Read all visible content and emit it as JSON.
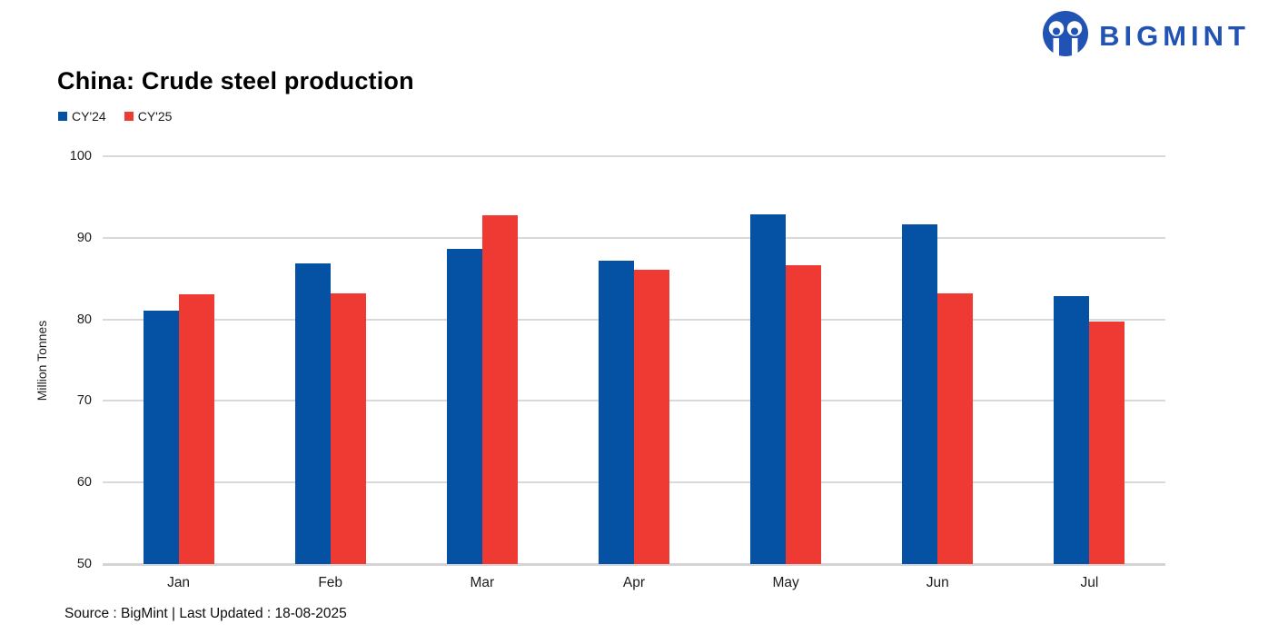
{
  "brand": {
    "name": "BIGMINT",
    "color": "#2153b4"
  },
  "title": "China: Crude steel production",
  "footer": {
    "source_text": "Source : BigMint | Last Updated : 18-08-2025"
  },
  "chart_data": {
    "type": "bar",
    "title": "China: Crude steel production",
    "categories": [
      "Jan",
      "Feb",
      "Mar",
      "Apr",
      "May",
      "Jun",
      "Jul"
    ],
    "series": [
      {
        "name": "CY'24",
        "color": "#0551a3",
        "values": [
          81.1,
          86.9,
          88.6,
          87.2,
          92.9,
          91.6,
          82.9
        ]
      },
      {
        "name": "CY'25",
        "color": "#ee3a33",
        "values": [
          83.1,
          83.2,
          92.8,
          86.1,
          86.6,
          83.2,
          79.7
        ]
      }
    ],
    "xlabel": "",
    "ylabel": "Million Tonnes",
    "ylim": [
      50,
      100
    ],
    "yticks": [
      50,
      60,
      70,
      80,
      90,
      100
    ],
    "grid": "horizontal",
    "legend_position": "top-left",
    "grid_color": "#d9d9d9"
  }
}
